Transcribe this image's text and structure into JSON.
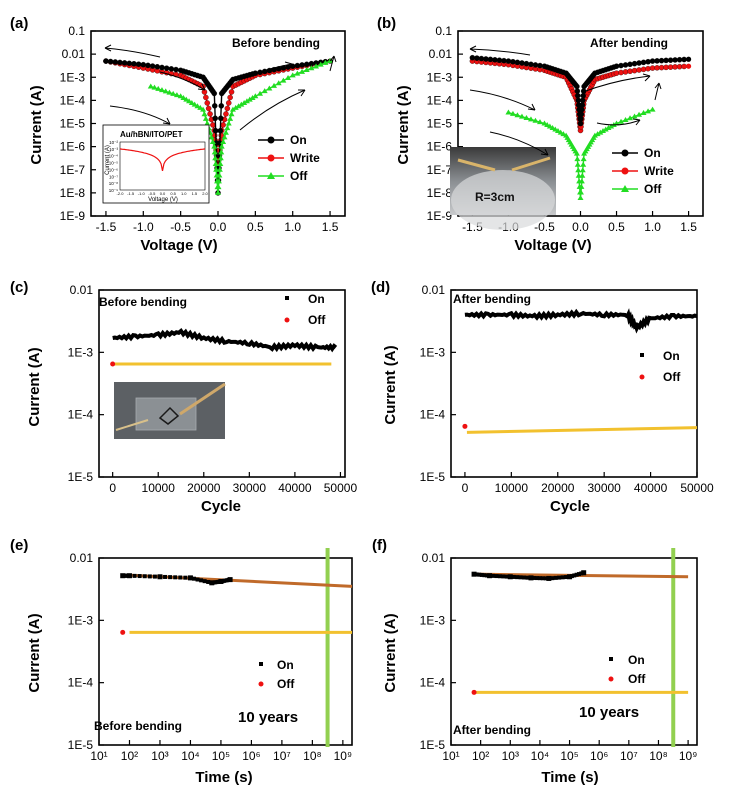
{
  "colors": {
    "on": "#000000",
    "write": "#ee1111",
    "off": "#22dd22",
    "fit_on": "#c06a2a",
    "fit_off": "#f2c12e",
    "marker_10y": "#92d050"
  },
  "chart_data": [
    {
      "panel": "(a)",
      "type": "line",
      "annotation": "Before bending",
      "xlabel": "Voltage (V)",
      "ylabel": "Current (A)",
      "xlim": [
        -1.7,
        1.7
      ],
      "ylim_log10": [
        -9,
        -1
      ],
      "y_scale": "log",
      "xticks": [
        "-1.5",
        "-1.0",
        "-0.5",
        "0.0",
        "0.5",
        "1.0",
        "1.5"
      ],
      "yticks": [
        "0.1",
        "0.01",
        "1E-3",
        "1E-4",
        "1E-5",
        "1E-6",
        "1E-7",
        "1E-8",
        "1E-9"
      ],
      "legend_position": "right",
      "series": [
        {
          "name": "On",
          "x": [
            -1.5,
            -1.0,
            -0.5,
            -0.2,
            -0.05,
            0.0,
            0.05,
            0.2,
            0.5,
            1.0,
            1.5
          ],
          "y": [
            0.005,
            0.0035,
            0.002,
            0.001,
            0.0002,
            1e-08,
            0.0002,
            0.0008,
            0.0015,
            0.003,
            0.005
          ]
        },
        {
          "name": "Write",
          "x": [
            -1.5,
            -1.0,
            -0.5,
            -0.2,
            -0.05,
            0.0,
            0.05,
            0.2,
            0.5,
            1.0,
            1.5
          ],
          "y": [
            0.005,
            0.0025,
            0.0012,
            0.0004,
            5e-06,
            1e-07,
            5e-06,
            0.0004,
            0.0012,
            0.0025,
            0.005
          ]
        },
        {
          "name": "Off",
          "x": [
            -0.9,
            -0.5,
            -0.2,
            -0.05,
            0.0,
            0.05,
            0.2,
            0.5,
            1.0,
            1.5
          ],
          "y": [
            0.0004,
            0.00015,
            4e-05,
            1e-06,
            1e-08,
            1e-06,
            4e-05,
            0.00015,
            0.0012,
            0.005
          ]
        }
      ],
      "inset": {
        "title": "Au/hBN/ITO/PET",
        "xlabel": "Voltage (V)",
        "ylabel": "Current (A)",
        "xticks": [
          "-2.0",
          "-1.5",
          "-1.0",
          "-0.5",
          "0.0",
          "0.5",
          "1.0",
          "1.5",
          "2.0"
        ],
        "yticks": [
          "10⁻²",
          "10⁻³",
          "10⁻⁴",
          "10⁻⁵",
          "10⁻⁶",
          "10⁻⁷",
          "10⁻⁸",
          "10⁻⁹"
        ]
      }
    },
    {
      "panel": "(b)",
      "type": "line",
      "annotation": "After bending",
      "inset_label": "R=3cm",
      "xlabel": "Voltage (V)",
      "ylabel": "Current (A)",
      "xlim": [
        -1.7,
        1.7
      ],
      "ylim_log10": [
        -9,
        -1
      ],
      "y_scale": "log",
      "xticks": [
        "-1.5",
        "-1.0",
        "-0.5",
        "0.0",
        "0.5",
        "1.0",
        "1.5"
      ],
      "yticks": [
        "0.1",
        "0.01",
        "1E-3",
        "1E-4",
        "1E-5",
        "1E-6",
        "1E-7",
        "1E-8",
        "1E-9"
      ],
      "legend_position": "right",
      "series": [
        {
          "name": "On",
          "x": [
            -1.5,
            -1.0,
            -0.5,
            -0.2,
            -0.05,
            0.0,
            0.05,
            0.2,
            0.5,
            1.0,
            1.5
          ],
          "y": [
            0.007,
            0.005,
            0.003,
            0.0015,
            0.0004,
            1e-05,
            0.0004,
            0.0015,
            0.003,
            0.005,
            0.006
          ]
        },
        {
          "name": "Write",
          "x": [
            -1.5,
            -1.0,
            -0.5,
            -0.2,
            -0.05,
            0.0,
            0.05,
            0.2,
            0.5,
            1.0,
            1.5
          ],
          "y": [
            0.005,
            0.0035,
            0.002,
            0.001,
            0.0001,
            5e-06,
            0.0001,
            0.0008,
            0.0015,
            0.0025,
            0.003
          ]
        },
        {
          "name": "Off",
          "x": [
            -1.0,
            -0.5,
            -0.2,
            -0.05,
            0.0,
            0.05,
            0.2,
            0.5,
            1.0
          ],
          "y": [
            3e-05,
            1e-05,
            3e-06,
            5e-07,
            6e-09,
            5e-07,
            3e-06,
            1e-05,
            4e-05
          ]
        }
      ]
    },
    {
      "panel": "(c)",
      "type": "scatter",
      "annotation": "Before bending",
      "xlabel": "Cycle",
      "ylabel": "Current (A)",
      "xlim": [
        -3000,
        51000
      ],
      "ylim_log10": [
        -5,
        -2
      ],
      "y_scale": "log",
      "xticks": [
        "0",
        "10000",
        "20000",
        "30000",
        "40000",
        "50000"
      ],
      "yticks": [
        "0.01",
        "1E-3",
        "1E-4",
        "1E-5"
      ],
      "legend_position": "top-right",
      "series": [
        {
          "name": "On",
          "x": [
            0,
            5000,
            10000,
            15000,
            20000,
            25000,
            30000,
            35000,
            40000,
            45000,
            49000
          ],
          "y": [
            0.0017,
            0.0018,
            0.0019,
            0.0021,
            0.0017,
            0.0015,
            0.0014,
            0.0012,
            0.0013,
            0.0012,
            0.0012
          ]
        },
        {
          "name": "Off",
          "x": [
            0,
            48000
          ],
          "y": [
            0.00065,
            0.00065
          ]
        }
      ]
    },
    {
      "panel": "(d)",
      "type": "scatter",
      "annotation": "After bending",
      "xlabel": "Cycle",
      "ylabel": "Current (A)",
      "xlim": [
        -3000,
        50000
      ],
      "ylim_log10": [
        -5,
        -2
      ],
      "y_scale": "log",
      "xticks": [
        "0",
        "10000",
        "20000",
        "30000",
        "40000",
        "50000"
      ],
      "yticks": [
        "0.01",
        "1E-3",
        "1E-4",
        "1E-5"
      ],
      "legend_position": "right",
      "series": [
        {
          "name": "On",
          "x": [
            0,
            5000,
            10000,
            15000,
            20000,
            25000,
            30000,
            35000,
            37000,
            40000,
            45000,
            50000
          ],
          "y": [
            0.004,
            0.004,
            0.004,
            0.0038,
            0.004,
            0.0042,
            0.004,
            0.004,
            0.0025,
            0.0035,
            0.0038,
            0.0038
          ]
        },
        {
          "name": "Off",
          "x": [
            0,
            50000
          ],
          "y": [
            6.5e-05,
            6.2e-05
          ]
        }
      ]
    },
    {
      "panel": "(e)",
      "type": "scatter",
      "annotation": "Before bending",
      "marker_label": "10 years",
      "xlabel": "Time (s)",
      "ylabel": "Current (A)",
      "xlim_log10": [
        1,
        9.3
      ],
      "ylim_log10": [
        -5,
        -2
      ],
      "x_scale": "log",
      "y_scale": "log",
      "xticks": [
        "10¹",
        "10²",
        "10³",
        "10⁴",
        "10⁵",
        "10⁶",
        "10⁷",
        "10⁸",
        "10⁹"
      ],
      "yticks": [
        "0.01",
        "1E-3",
        "1E-4",
        "1E-5"
      ],
      "legend_position": "lower-right",
      "series": [
        {
          "name": "On",
          "x": [
            60,
            100,
            1000,
            10000,
            50000,
            100000,
            200000
          ],
          "y": [
            0.0052,
            0.0052,
            0.005,
            0.0048,
            0.004,
            0.0042,
            0.0045
          ]
        },
        {
          "name": "Off",
          "x": [
            60
          ],
          "y": [
            0.00064
          ]
        }
      ],
      "fits": [
        {
          "x": [
            100,
            2000000000
          ],
          "y": [
            0.0053,
            0.0035
          ]
        },
        {
          "x": [
            100,
            2000000000
          ],
          "y": [
            0.00064,
            0.00064
          ]
        }
      ],
      "marker_x": 315360000
    },
    {
      "panel": "(f)",
      "type": "scatter",
      "annotation": "After bending",
      "marker_label": "10 years",
      "xlabel": "Time (s)",
      "ylabel": "Current (A)",
      "xlim_log10": [
        1,
        9.3
      ],
      "ylim_log10": [
        -5,
        -2
      ],
      "x_scale": "log",
      "y_scale": "log",
      "xticks": [
        "10¹",
        "10²",
        "10³",
        "10⁴",
        "10⁵",
        "10⁶",
        "10⁷",
        "10⁸",
        "10⁹"
      ],
      "yticks": [
        "0.01",
        "1E-3",
        "1E-4",
        "1E-5"
      ],
      "legend_position": "right",
      "series": [
        {
          "name": "On",
          "x": [
            60,
            200,
            1000,
            5000,
            20000,
            100000,
            300000
          ],
          "y": [
            0.0055,
            0.0052,
            0.005,
            0.0048,
            0.0047,
            0.005,
            0.0058
          ]
        },
        {
          "name": "Off",
          "x": [
            60
          ],
          "y": [
            7e-05
          ]
        }
      ],
      "fits": [
        {
          "x": [
            60,
            1000000000
          ],
          "y": [
            0.0055,
            0.005
          ]
        },
        {
          "x": [
            60,
            1000000000
          ],
          "y": [
            7e-05,
            7e-05
          ]
        }
      ],
      "marker_x": 315360000
    }
  ]
}
